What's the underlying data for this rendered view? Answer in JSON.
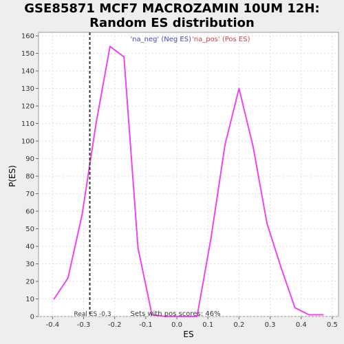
{
  "chart_data": {
    "type": "line",
    "title_lines": [
      "GSE85871 MCF7 MACROZAMIN 10UM 12H:",
      "Random ES distribution"
    ],
    "xlabel": "ES",
    "ylabel": "P(ES)",
    "xlim": [
      -0.445,
      0.52
    ],
    "ylim": [
      0,
      162
    ],
    "x_ticks": [
      -0.4,
      -0.3,
      -0.2,
      -0.1,
      0.0,
      0.1,
      0.2,
      0.3,
      0.4,
      0.5
    ],
    "x_tick_labels": [
      "-0.4",
      "-0.3",
      "-0.2",
      "-0.1",
      "0.0",
      "0.1",
      "0.2",
      "0.3",
      "0.4",
      "0.5"
    ],
    "y_ticks": [
      0,
      10,
      20,
      30,
      40,
      50,
      60,
      70,
      80,
      90,
      100,
      110,
      120,
      130,
      140,
      150,
      160
    ],
    "y_tick_labels": [
      "0",
      "10",
      "20",
      "30",
      "40",
      "50",
      "60",
      "70",
      "80",
      "90",
      "100",
      "110",
      "120",
      "130",
      "140",
      "150",
      "160"
    ],
    "grid": true,
    "legend": {
      "placement": "top-center",
      "neg_label": "'na_neg' (Neg ES)",
      "pos_label": "'na_pos' (Pos ES)"
    },
    "series": [
      {
        "x": [
          -0.395,
          -0.35,
          -0.305,
          -0.26,
          -0.215,
          -0.17,
          -0.125,
          -0.08,
          -0.035,
          0.01,
          0.065,
          0.11,
          0.155,
          0.2,
          0.245,
          0.29,
          0.335,
          0.38,
          0.425,
          0.47
        ],
        "y": [
          10,
          22,
          58,
          110,
          154,
          148,
          39,
          1,
          0,
          0,
          0,
          45,
          98,
          130,
          97,
          53,
          28,
          5,
          1,
          1
        ]
      }
    ],
    "line_color": "#ee44ee",
    "real_es": {
      "x": -0.28,
      "label": "Real ES -0.3"
    },
    "annotation": "Sets with pos scores: 46%"
  },
  "colors": {
    "background": "#eeeeee",
    "plot_background": "#ffffff",
    "grid": "#dddddd",
    "line": "#ee44ee"
  }
}
